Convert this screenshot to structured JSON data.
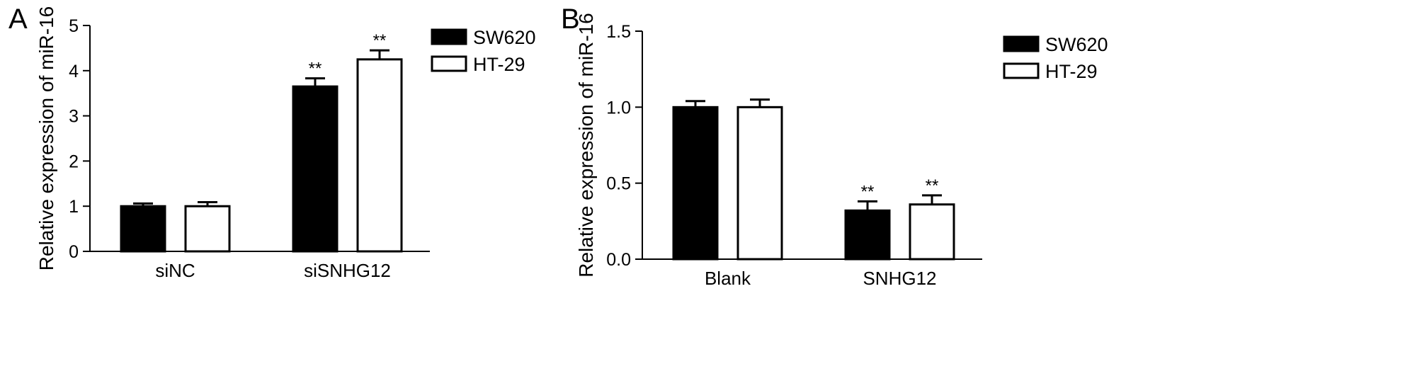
{
  "chart_data": [
    {
      "panel": "A",
      "type": "bar",
      "ylabel": "Relative expression of miR-16",
      "xlabel": "",
      "categories": [
        "siNC",
        "siSNHG12"
      ],
      "ylim": [
        0,
        5
      ],
      "yticks": [
        "0",
        "1",
        "2",
        "3",
        "4",
        "5"
      ],
      "series": [
        {
          "name": "SW620",
          "fill": "#000000",
          "values": [
            1.0,
            3.65
          ],
          "errors": [
            0.06,
            0.18
          ]
        },
        {
          "name": "HT-29",
          "fill": "#ffffff",
          "values": [
            1.0,
            4.25
          ],
          "errors": [
            0.09,
            0.2
          ]
        }
      ],
      "annotations": [
        [
          "",
          "**"
        ],
        [
          "",
          "**"
        ]
      ],
      "legend": "top-right",
      "grid": false
    },
    {
      "panel": "B",
      "type": "bar",
      "ylabel": "Relative expression of miR-16",
      "xlabel": "",
      "categories": [
        "Blank",
        "SNHG12"
      ],
      "ylim": [
        0,
        1.5
      ],
      "yticks": [
        "0.0",
        "0.5",
        "1.0",
        "1.5"
      ],
      "series": [
        {
          "name": "SW620",
          "fill": "#000000",
          "values": [
            1.0,
            0.32
          ],
          "errors": [
            0.04,
            0.06
          ]
        },
        {
          "name": "HT-29",
          "fill": "#ffffff",
          "values": [
            1.0,
            0.36
          ],
          "errors": [
            0.05,
            0.06
          ]
        }
      ],
      "annotations": [
        [
          "",
          "**"
        ],
        [
          "",
          "**"
        ]
      ],
      "legend": "top-right",
      "grid": false
    }
  ]
}
